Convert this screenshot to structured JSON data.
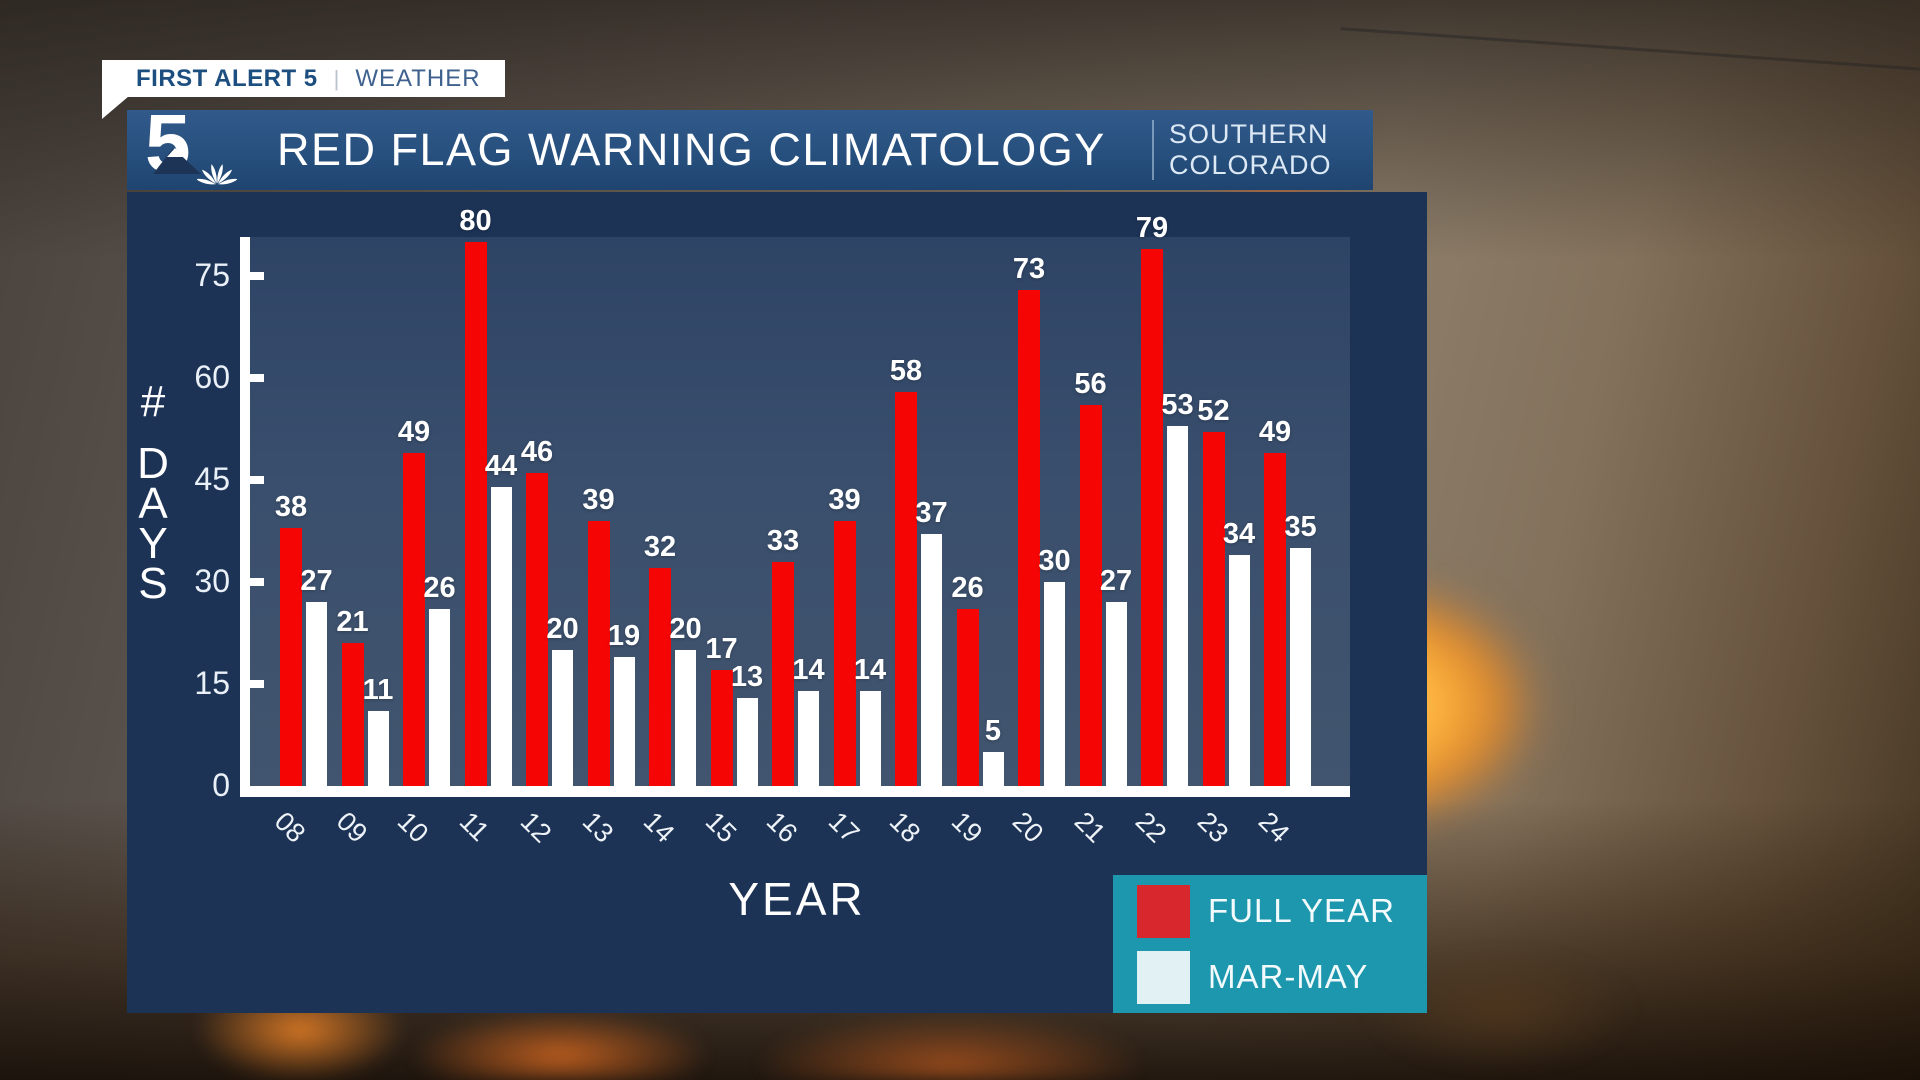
{
  "badge": {
    "brand": "FIRST ALERT 5",
    "separator": "|",
    "section": "WEATHER"
  },
  "header": {
    "station_number": "5",
    "title": "RED FLAG WARNING CLIMATOLOGY",
    "region_line1": "SOUTHERN",
    "region_line2": "COLORADO"
  },
  "chart_data": {
    "type": "bar",
    "title": "RED FLAG WARNING CLIMATOLOGY",
    "subtitle": "SOUTHERN COLORADO",
    "xlabel": "YEAR",
    "ylabel": "# DAYS",
    "ylim": [
      0,
      81
    ],
    "yticks": [
      0,
      15,
      30,
      45,
      60,
      75
    ],
    "grid": false,
    "legend_position": "bottom-right",
    "categories": [
      "08",
      "09",
      "10",
      "11",
      "12",
      "13",
      "14",
      "15",
      "16",
      "17",
      "18",
      "19",
      "20",
      "21",
      "22",
      "23",
      "24"
    ],
    "series": [
      {
        "name": "FULL YEAR",
        "bar_color": "#f60505",
        "swatch_color": "#d8282e",
        "values": [
          38,
          21,
          49,
          80,
          46,
          39,
          32,
          17,
          33,
          39,
          58,
          26,
          73,
          56,
          79,
          52,
          49
        ]
      },
      {
        "name": "MAR-MAY",
        "bar_color": "#ffffff",
        "swatch_color": "#e2f2f4",
        "values": [
          27,
          11,
          26,
          44,
          20,
          19,
          20,
          13,
          14,
          14,
          37,
          5,
          30,
          27,
          53,
          34,
          35
        ]
      }
    ]
  },
  "colors": {
    "panel_navy": "#1d3355",
    "plot_background": "#3a4f6d",
    "header_blue": "#27507e",
    "legend_teal": "#1d97ad",
    "full_year_red": "#f60505",
    "mar_may_white": "#ffffff",
    "axis_white": "#ffffff",
    "badge_text_navy": "#1d4e80"
  }
}
